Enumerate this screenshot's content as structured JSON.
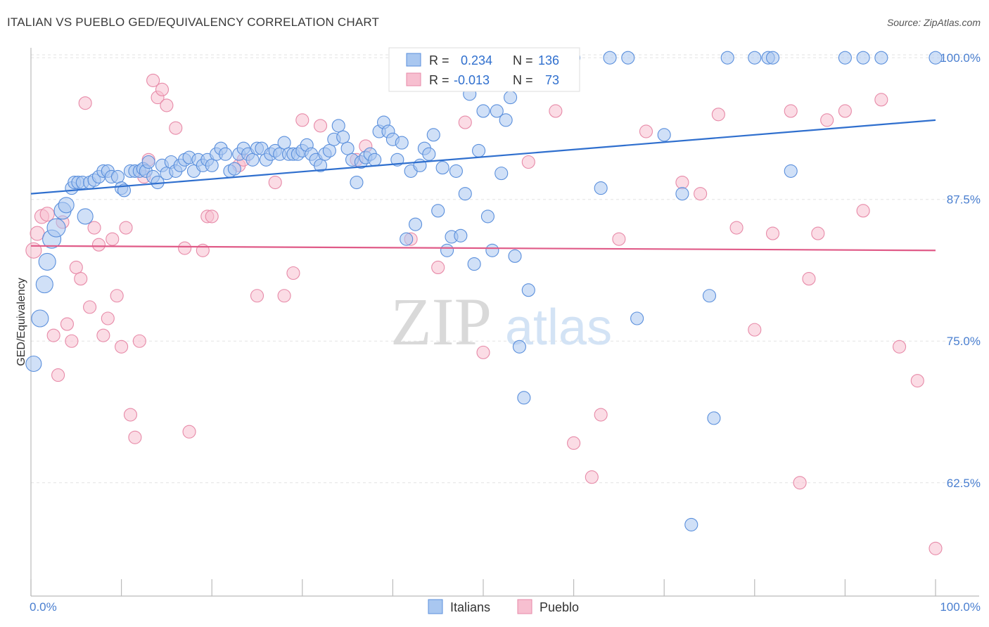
{
  "header": {
    "title": "ITALIAN VS PUEBLO GED/EQUIVALENCY CORRELATION CHART",
    "source": "Source: ZipAtlas.com"
  },
  "watermark": {
    "zip": "ZIP",
    "atlas": "atlas"
  },
  "chart_data": {
    "type": "scatter",
    "ylabel": "GED/Equivalency",
    "xlim": [
      0,
      100
    ],
    "ylim": [
      52.5,
      101.5
    ],
    "y_ticks": [
      {
        "value": 100.0,
        "label": "100.0%"
      },
      {
        "value": 87.5,
        "label": "87.5%"
      },
      {
        "value": 75.0,
        "label": "75.0%"
      },
      {
        "value": 62.5,
        "label": "62.5%"
      }
    ],
    "x_tick_labels": {
      "left": "0.0%",
      "right": "100.0%"
    },
    "grid": true,
    "legend_placement": "top-center",
    "legend": [
      {
        "r_label": "R =",
        "r_value": "0.234",
        "n_label": "N =",
        "n_value": "136"
      },
      {
        "r_label": "R =",
        "r_value": "-0.013",
        "n_label": "N =",
        "n_value": "73"
      }
    ],
    "series": [
      {
        "name": "Italians",
        "fill": "#a9c7f0",
        "stroke": "#5a8fdc",
        "line_color": "#2f6fce",
        "trend": {
          "x": [
            0,
            100
          ],
          "y": [
            88.0,
            94.5
          ]
        },
        "points": [
          [
            0.3,
            73,
            11
          ],
          [
            1,
            77,
            12
          ],
          [
            1.5,
            80,
            12
          ],
          [
            1.8,
            82,
            12
          ],
          [
            2.3,
            84,
            13
          ],
          [
            2.8,
            85,
            13
          ],
          [
            3.5,
            86.5,
            12
          ],
          [
            3.9,
            87,
            11
          ],
          [
            6,
            86,
            11
          ],
          [
            4.5,
            88.5,
            9
          ],
          [
            4.8,
            89,
            9
          ],
          [
            5.2,
            89,
            9
          ],
          [
            5.7,
            89,
            9
          ],
          [
            6.5,
            89,
            9
          ],
          [
            7,
            89.2,
            9
          ],
          [
            7.5,
            89.5,
            9
          ],
          [
            8,
            90,
            9
          ],
          [
            8.5,
            90,
            9
          ],
          [
            8.9,
            89.5,
            9
          ],
          [
            9.6,
            89.5,
            9
          ],
          [
            10,
            88.5,
            9
          ],
          [
            10.3,
            88.3,
            9
          ],
          [
            11,
            90,
            9
          ],
          [
            11.5,
            90,
            9
          ],
          [
            12,
            90,
            9
          ],
          [
            12.4,
            90.2,
            9
          ],
          [
            12.7,
            90,
            9
          ],
          [
            13,
            90.8,
            9
          ],
          [
            13.5,
            89.5,
            9
          ],
          [
            14,
            89,
            9
          ],
          [
            14.5,
            90.5,
            9
          ],
          [
            15,
            89.8,
            9
          ],
          [
            15.5,
            90.8,
            9
          ],
          [
            16,
            90,
            9
          ],
          [
            16.5,
            90.5,
            9
          ],
          [
            17,
            91,
            9
          ],
          [
            17.5,
            91.2,
            9
          ],
          [
            18,
            90,
            9
          ],
          [
            18.5,
            91,
            9
          ],
          [
            19,
            90.5,
            9
          ],
          [
            19.5,
            91,
            9
          ],
          [
            20,
            90.5,
            9
          ],
          [
            20.5,
            91.5,
            9
          ],
          [
            21,
            92,
            9
          ],
          [
            21.5,
            91.5,
            9
          ],
          [
            22,
            90,
            9
          ],
          [
            22.5,
            90.2,
            9
          ],
          [
            23,
            91.5,
            9
          ],
          [
            23.5,
            92,
            9
          ],
          [
            24,
            91.5,
            9
          ],
          [
            24.5,
            91,
            9
          ],
          [
            25,
            92,
            9
          ],
          [
            25.5,
            92,
            9
          ],
          [
            26,
            91,
            9
          ],
          [
            26.5,
            91.5,
            9
          ],
          [
            27,
            91.8,
            9
          ],
          [
            27.5,
            91.5,
            9
          ],
          [
            28,
            92.5,
            9
          ],
          [
            28.5,
            91.5,
            9
          ],
          [
            29,
            91.5,
            9
          ],
          [
            29.5,
            91.5,
            9
          ],
          [
            30,
            91.8,
            9
          ],
          [
            30.5,
            92.3,
            9
          ],
          [
            31,
            91.5,
            9
          ],
          [
            31.5,
            91,
            9
          ],
          [
            32,
            90.5,
            9
          ],
          [
            32.5,
            91.5,
            9
          ],
          [
            33,
            91.8,
            9
          ],
          [
            33.5,
            92.8,
            9
          ],
          [
            34,
            94,
            9
          ],
          [
            34.5,
            93,
            9
          ],
          [
            35,
            92,
            9
          ],
          [
            35.5,
            91,
            9
          ],
          [
            36,
            89,
            9
          ],
          [
            36.5,
            90.8,
            9
          ],
          [
            37,
            91.2,
            9
          ],
          [
            37.5,
            91.5,
            9
          ],
          [
            38,
            91,
            9
          ],
          [
            38.5,
            93.5,
            9
          ],
          [
            39,
            94.3,
            9
          ],
          [
            39.5,
            93.5,
            9
          ],
          [
            40,
            92.8,
            9
          ],
          [
            40.5,
            91,
            9
          ],
          [
            41,
            92.5,
            9
          ],
          [
            41.5,
            84,
            9
          ],
          [
            42,
            90,
            9
          ],
          [
            42.5,
            85.3,
            9
          ],
          [
            43,
            90.5,
            9
          ],
          [
            43.5,
            92,
            9
          ],
          [
            44,
            91.5,
            9
          ],
          [
            44.5,
            93.2,
            9
          ],
          [
            45,
            86.5,
            9
          ],
          [
            45.5,
            90.3,
            9
          ],
          [
            46,
            83,
            9
          ],
          [
            46.5,
            84.2,
            9
          ],
          [
            47,
            90,
            9
          ],
          [
            47.5,
            84.3,
            9
          ],
          [
            48,
            88,
            9
          ],
          [
            48.5,
            96.8,
            9
          ],
          [
            49,
            81.8,
            9
          ],
          [
            49.5,
            91.8,
            9
          ],
          [
            50,
            95.3,
            9
          ],
          [
            50.5,
            86,
            9
          ],
          [
            51,
            83,
            9
          ],
          [
            51.5,
            95.3,
            9
          ],
          [
            52,
            89.8,
            9
          ],
          [
            52.5,
            94.5,
            9
          ],
          [
            53,
            96.5,
            9
          ],
          [
            53.5,
            82.5,
            9
          ],
          [
            54,
            74.5,
            9
          ],
          [
            54.5,
            70,
            9
          ],
          [
            55,
            79.5,
            9
          ],
          [
            56,
            100,
            9
          ],
          [
            57,
            100,
            9
          ],
          [
            58,
            100,
            9
          ],
          [
            59,
            100,
            9
          ],
          [
            60,
            100,
            9
          ],
          [
            63,
            88.5,
            9
          ],
          [
            64,
            100,
            9
          ],
          [
            66,
            100,
            9
          ],
          [
            67,
            77,
            9
          ],
          [
            70,
            93.2,
            9
          ],
          [
            72,
            88,
            9
          ],
          [
            73,
            58.8,
            9
          ],
          [
            75,
            79,
            9
          ],
          [
            75.5,
            68.2,
            9
          ],
          [
            77,
            100,
            9
          ],
          [
            80,
            100,
            9
          ],
          [
            81.5,
            100,
            9
          ],
          [
            82,
            100,
            9
          ],
          [
            84,
            90,
            9
          ],
          [
            90,
            100,
            9
          ],
          [
            92,
            100,
            9
          ],
          [
            94,
            100,
            9
          ],
          [
            100,
            100,
            9
          ]
        ]
      },
      {
        "name": "Pueblo",
        "fill": "#f7bfd0",
        "stroke": "#e78aa8",
        "line_color": "#e05b88",
        "trend": {
          "x": [
            0,
            100
          ],
          "y": [
            83.4,
            83.0
          ]
        },
        "points": [
          [
            0.3,
            83,
            11
          ],
          [
            0.7,
            84.5,
            10
          ],
          [
            1.2,
            86,
            10
          ],
          [
            1.8,
            86.2,
            10
          ],
          [
            2.5,
            75.5,
            9
          ],
          [
            3,
            72,
            9
          ],
          [
            3.5,
            85.5,
            9
          ],
          [
            4,
            76.5,
            9
          ],
          [
            4.5,
            75,
            9
          ],
          [
            5,
            81.5,
            9
          ],
          [
            5.5,
            80.5,
            9
          ],
          [
            6,
            96,
            9
          ],
          [
            6.5,
            78,
            9
          ],
          [
            7,
            85,
            9
          ],
          [
            7.5,
            83.5,
            9
          ],
          [
            8,
            75.5,
            9
          ],
          [
            8.5,
            77,
            9
          ],
          [
            9,
            84,
            9
          ],
          [
            9.5,
            79,
            9
          ],
          [
            10,
            74.5,
            9
          ],
          [
            10.5,
            85,
            9
          ],
          [
            11,
            68.5,
            9
          ],
          [
            11.5,
            66.5,
            9
          ],
          [
            12,
            75,
            9
          ],
          [
            12.5,
            89.5,
            9
          ],
          [
            13,
            91,
            9
          ],
          [
            13.5,
            98,
            9
          ],
          [
            14,
            96.5,
            9
          ],
          [
            14.5,
            97.2,
            9
          ],
          [
            15,
            95.8,
            9
          ],
          [
            16,
            93.8,
            9
          ],
          [
            17,
            83.2,
            9
          ],
          [
            17.5,
            67,
            9
          ],
          [
            19,
            83,
            9
          ],
          [
            19.5,
            86,
            9
          ],
          [
            20,
            86,
            9
          ],
          [
            23,
            90.5,
            9
          ],
          [
            23.5,
            91,
            9
          ],
          [
            25,
            79,
            9
          ],
          [
            27,
            89,
            9
          ],
          [
            28,
            79,
            9
          ],
          [
            29,
            81,
            9
          ],
          [
            30,
            94.5,
            9
          ],
          [
            32,
            94,
            9
          ],
          [
            36,
            91,
            9
          ],
          [
            37,
            92.2,
            9
          ],
          [
            42,
            84,
            9
          ],
          [
            45,
            81.5,
            9
          ],
          [
            48,
            94.3,
            9
          ],
          [
            50,
            74,
            9
          ],
          [
            55,
            90.8,
            9
          ],
          [
            58,
            95.3,
            9
          ],
          [
            60,
            66,
            9
          ],
          [
            62,
            63,
            9
          ],
          [
            63,
            68.5,
            9
          ],
          [
            65,
            84,
            9
          ],
          [
            68,
            93.5,
            9
          ],
          [
            72,
            89,
            9
          ],
          [
            74,
            88,
            9
          ],
          [
            76,
            95,
            9
          ],
          [
            78,
            85,
            9
          ],
          [
            80,
            76,
            9
          ],
          [
            82,
            84.5,
            9
          ],
          [
            84,
            95.3,
            9
          ],
          [
            85,
            62.5,
            9
          ],
          [
            86,
            80.5,
            9
          ],
          [
            87,
            84.5,
            9
          ],
          [
            88,
            94.5,
            9
          ],
          [
            90,
            95.3,
            9
          ],
          [
            92,
            86.5,
            9
          ],
          [
            94,
            96.3,
            9
          ],
          [
            96,
            74.5,
            9
          ],
          [
            98,
            71.5,
            9
          ],
          [
            100,
            56.7,
            9
          ]
        ]
      }
    ]
  },
  "bottom_legend": {
    "italians": "Italians",
    "pueblo": "Pueblo"
  }
}
